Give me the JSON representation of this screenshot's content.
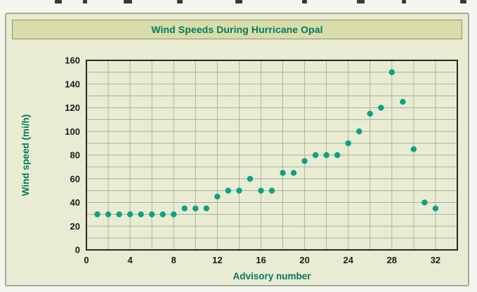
{
  "chart_data": {
    "type": "scatter",
    "title": "Wind Speeds During Hurricane Opal",
    "xlabel": "Advisory number",
    "ylabel": "Wind speed (mi/h)",
    "xlim": [
      0,
      34
    ],
    "ylim": [
      0,
      160
    ],
    "x_ticks": [
      0,
      4,
      8,
      12,
      16,
      20,
      24,
      28,
      32
    ],
    "y_ticks": [
      0,
      20,
      40,
      60,
      80,
      100,
      120,
      140,
      160
    ],
    "x_grid_step": 2,
    "y_grid_step": 10,
    "grid": true,
    "legend": "none",
    "points": [
      [
        1,
        30
      ],
      [
        2,
        30
      ],
      [
        3,
        30
      ],
      [
        4,
        30
      ],
      [
        5,
        30
      ],
      [
        6,
        30
      ],
      [
        7,
        30
      ],
      [
        8,
        30
      ],
      [
        9,
        35
      ],
      [
        10,
        35
      ],
      [
        11,
        35
      ],
      [
        12,
        45
      ],
      [
        13,
        50
      ],
      [
        14,
        50
      ],
      [
        15,
        60
      ],
      [
        16,
        50
      ],
      [
        17,
        50
      ],
      [
        18,
        65
      ],
      [
        19,
        65
      ],
      [
        20,
        75
      ],
      [
        21,
        80
      ],
      [
        22,
        80
      ],
      [
        23,
        80
      ],
      [
        24,
        90
      ],
      [
        25,
        100
      ],
      [
        26,
        115
      ],
      [
        27,
        120
      ],
      [
        28,
        150
      ],
      [
        29,
        125
      ],
      [
        30,
        85
      ],
      [
        31,
        40
      ],
      [
        32,
        35
      ]
    ],
    "colors": {
      "point": "#0aa286",
      "title_text": "#007a5e",
      "axis_label": "#007a5e",
      "tick_text": "#1b1b1b",
      "grid": "#a9ae9d",
      "plot_border": "#262626",
      "panel_bg": "#e9ecd2",
      "title_bar_bg": "#d9dcab"
    }
  }
}
